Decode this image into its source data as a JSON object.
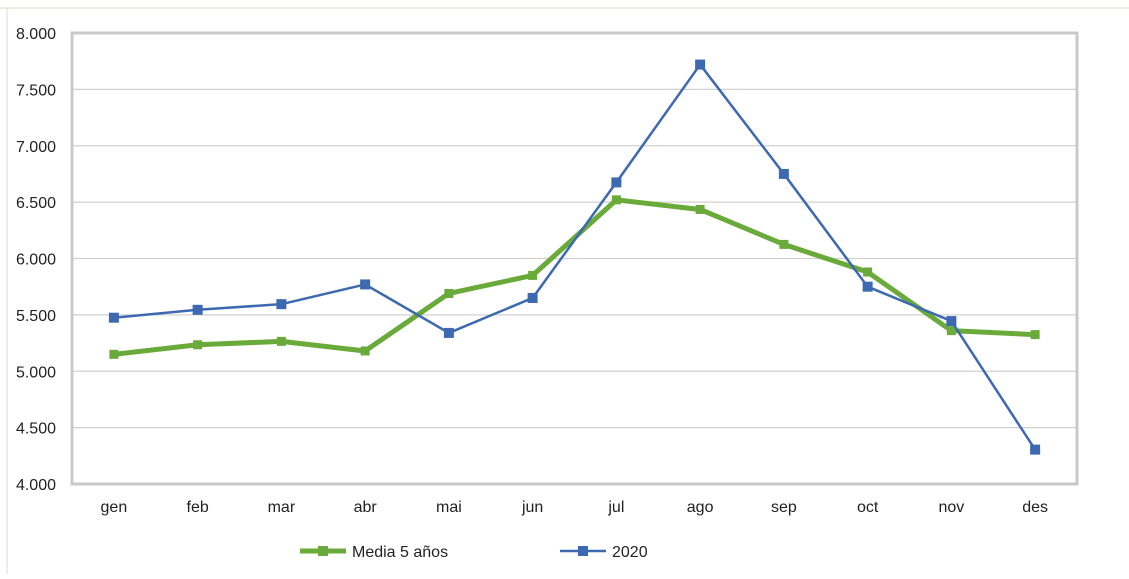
{
  "chart_data": {
    "type": "line",
    "title": "",
    "xlabel": "",
    "ylabel": "",
    "categories": [
      "gen",
      "feb",
      "mar",
      "abr",
      "mai",
      "jun",
      "jul",
      "ago",
      "sep",
      "oct",
      "nov",
      "des"
    ],
    "ylim": [
      4000,
      8000
    ],
    "yticks": [
      4000,
      4500,
      5000,
      5500,
      6000,
      6500,
      7000,
      7500,
      8000
    ],
    "ytick_labels": [
      "4.000",
      "4.500",
      "5.000",
      "5.500",
      "6.000",
      "6.500",
      "7.000",
      "7.500",
      "8.000"
    ],
    "grid": true,
    "legend_position": "bottom",
    "series": [
      {
        "name": "Media 5 años",
        "color": "#6aaa3a",
        "marker": "square",
        "values": [
          5150,
          5235,
          5265,
          5180,
          5690,
          5850,
          6520,
          6435,
          6125,
          5880,
          5360,
          5325
        ]
      },
      {
        "name": "2020",
        "color": "#3d69b0",
        "marker": "square",
        "values": [
          5475,
          5545,
          5595,
          5770,
          5340,
          5650,
          6675,
          7720,
          6750,
          5750,
          5445,
          4305
        ]
      }
    ]
  }
}
